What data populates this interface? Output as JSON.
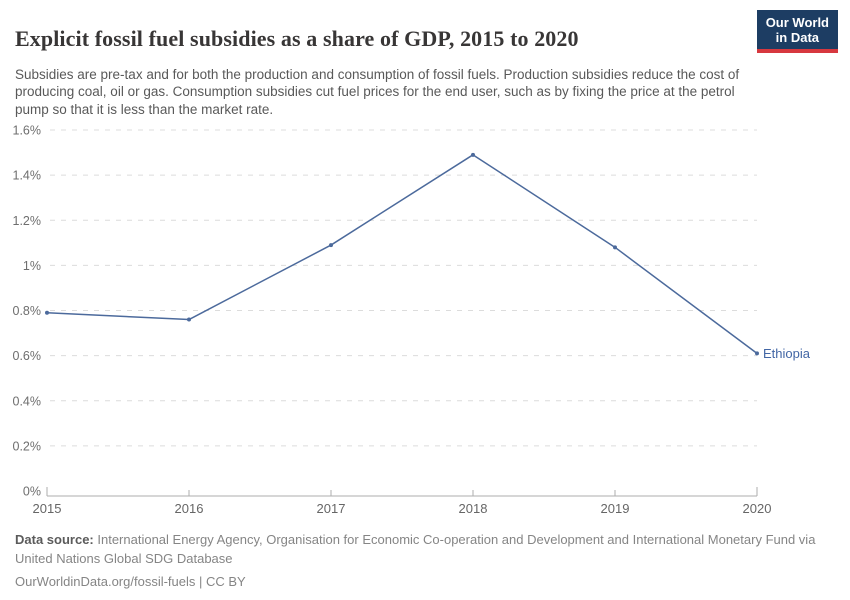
{
  "header": {
    "title": "Explicit fossil fuel subsidies as a share of GDP, 2015 to 2020",
    "subtitle": "Subsidies are pre-tax and for both the production and consumption of fossil fuels. Production subsidies reduce the cost of producing coal, oil or gas. Consumption subsidies cut fuel prices for the end user, such as by fixing the price at the petrol pump so that it is less than the market rate.",
    "logo": {
      "line1": "Our World",
      "line2": "in Data",
      "bg_color": "#1d3d63",
      "stripe_color": "#d7383f"
    }
  },
  "chart_data": {
    "type": "line",
    "title": "Explicit fossil fuel subsidies as a share of GDP, 2015 to 2020",
    "x": [
      2015,
      2016,
      2017,
      2018,
      2019,
      2020
    ],
    "series": [
      {
        "name": "Ethiopia",
        "values": [
          0.79,
          0.76,
          1.09,
          1.49,
          1.08,
          0.61
        ],
        "color": "#4c6a9c",
        "label_color": "#4266a5"
      }
    ],
    "xlabel": "",
    "ylabel": "",
    "ylim": [
      0,
      1.6
    ],
    "yticks": [
      {
        "value": 0,
        "label": "0%"
      },
      {
        "value": 0.2,
        "label": "0.2%"
      },
      {
        "value": 0.4,
        "label": "0.4%"
      },
      {
        "value": 0.6,
        "label": "0.6%"
      },
      {
        "value": 0.8,
        "label": "0.8%"
      },
      {
        "value": 1,
        "label": "1%"
      },
      {
        "value": 1.2,
        "label": "1.2%"
      },
      {
        "value": 1.4,
        "label": "1.4%"
      },
      {
        "value": 1.6,
        "label": "1.6%"
      }
    ],
    "xticks": [
      "2015",
      "2016",
      "2017",
      "2018",
      "2019",
      "2020"
    ],
    "grid": "horizontal-dashed",
    "grid_color": "#dcdcdc",
    "axis_color": "#adadad",
    "legend_position": "end-of-line-label"
  },
  "footer": {
    "datasource_label": "Data source:",
    "datasource_text": " International Energy Agency, Organisation for Economic Co-operation and Development and International Monetary Fund via United Nations Global SDG Database",
    "license_link": "OurWorldinData.org/fossil-fuels",
    "license_separator": " | ",
    "license_terms": "CC BY"
  }
}
